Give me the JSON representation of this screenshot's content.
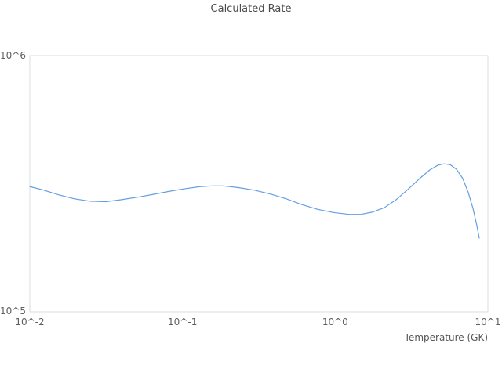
{
  "chart": {
    "title": "Calculated Rate",
    "xlabel": "Temperature (GK)",
    "x_ticks": [
      {
        "label": "10^-2",
        "value": 0.01
      },
      {
        "label": "10^-1",
        "value": 0.1
      },
      {
        "label": "10^0",
        "value": 1
      },
      {
        "label": "10^1",
        "value": 10
      }
    ],
    "y_ticks": [
      {
        "label": "10^5",
        "value": 100000
      },
      {
        "label": "10^6",
        "value": 1000000
      }
    ]
  },
  "chart_data": {
    "type": "line",
    "title": "Calculated Rate",
    "xlabel": "Temperature (GK)",
    "ylabel": "",
    "x_scale": "log",
    "y_scale": "log",
    "xlim": [
      0.01,
      10
    ],
    "ylim": [
      100000,
      1000000
    ],
    "grid": false,
    "legend": "none",
    "line_color": "#639fe0",
    "frame_color": "#dedede",
    "series": [
      {
        "name": "calculated-rate",
        "x": [
          0.01,
          0.0122,
          0.0155,
          0.0196,
          0.0249,
          0.0315,
          0.0399,
          0.0506,
          0.064,
          0.0812,
          0.103,
          0.13,
          0.156,
          0.186,
          0.235,
          0.298,
          0.378,
          0.478,
          0.606,
          0.768,
          0.973,
          1.23,
          1.47,
          1.76,
          2.1,
          2.51,
          2.99,
          3.57,
          4.17,
          4.69,
          5.15,
          5.66,
          6.23,
          6.85,
          7.44,
          7.99,
          8.47,
          8.78
        ],
        "y": [
          308000,
          299000,
          286000,
          276000,
          270000,
          269000,
          274000,
          280000,
          287000,
          295000,
          302000,
          308000,
          310000,
          310000,
          305000,
          298000,
          288000,
          276000,
          262000,
          251000,
          244000,
          240000,
          240000,
          245000,
          255000,
          274000,
          300000,
          331000,
          358000,
          373000,
          378000,
          375000,
          360000,
          331000,
          292000,
          253000,
          217000,
          194000
        ]
      }
    ]
  }
}
